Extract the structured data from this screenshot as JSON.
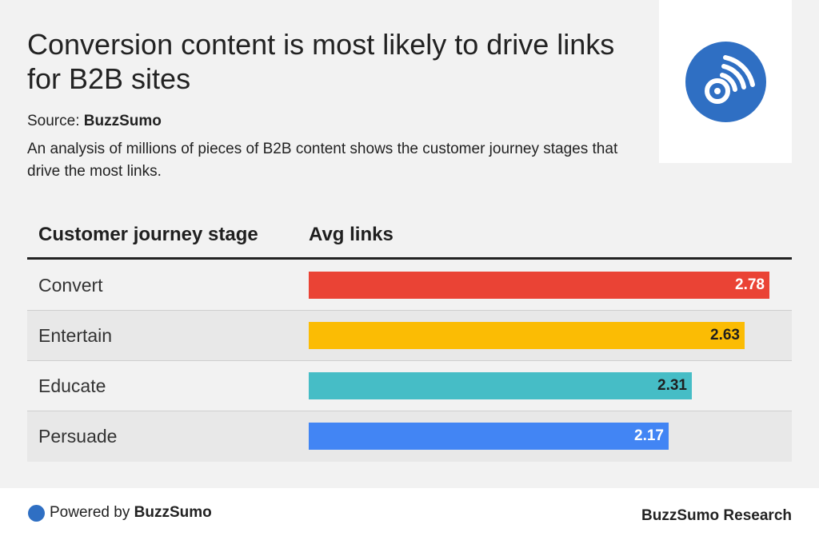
{
  "header": {
    "title": "Conversion content is most likely to drive links for B2B sites",
    "source_prefix": "Source:",
    "source_name": "BuzzSumo",
    "description": "An analysis of millions of pieces of B2B content shows the customer journey stages that drive the most links."
  },
  "logo": {
    "icon": "rss-feed-icon",
    "color": "#2f6fc3"
  },
  "table": {
    "col_stage": "Customer journey stage",
    "col_links": "Avg links"
  },
  "chart_data": {
    "type": "bar",
    "orientation": "horizontal",
    "categories": [
      "Convert",
      "Entertain",
      "Educate",
      "Persuade"
    ],
    "values": [
      2.78,
      2.63,
      2.31,
      2.17
    ],
    "value_labels": [
      "2.78",
      "2.63",
      "2.31",
      "2.17"
    ],
    "colors": [
      "#ea4335",
      "#fbbc04",
      "#46bdc6",
      "#4285f4"
    ],
    "label_colors": [
      "#ffffff",
      "#1f1f1f",
      "#1f1f1f",
      "#ffffff"
    ],
    "xlim": [
      0,
      2.78
    ],
    "grid": false
  },
  "footer": {
    "powered_prefix": "Powered by",
    "powered_name": "BuzzSumo",
    "right_text": "BuzzSumo Research"
  }
}
